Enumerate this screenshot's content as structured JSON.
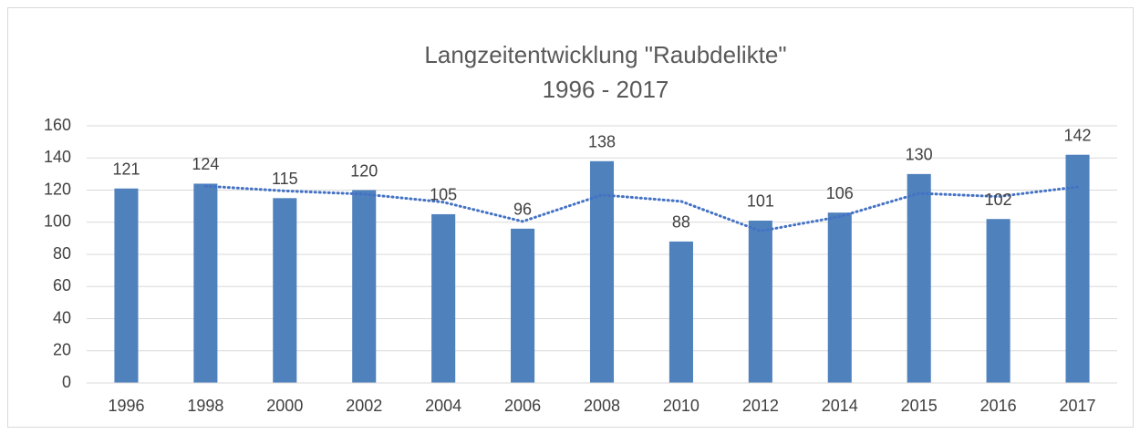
{
  "chart_data": {
    "type": "bar",
    "title": "Langzeitentwicklung \"Raubdelikte\"",
    "subtitle": "1996 - 2017",
    "categories": [
      "1996",
      "1998",
      "2000",
      "2002",
      "2004",
      "2006",
      "2008",
      "2010",
      "2012",
      "2014",
      "2015",
      "2016",
      "2017"
    ],
    "values": [
      121,
      124,
      115,
      120,
      105,
      96,
      138,
      88,
      101,
      106,
      130,
      102,
      142
    ],
    "color": "#4f81bd",
    "trendline": {
      "values": [
        null,
        122.5,
        119.5,
        117.5,
        112.5,
        100.5,
        117,
        113,
        94.5,
        103.5,
        118,
        116,
        122
      ],
      "color": "#4472c4",
      "style": "dotted"
    },
    "ylim": [
      0,
      160
    ],
    "yticks": [
      0,
      20,
      40,
      60,
      80,
      100,
      120,
      140,
      160
    ],
    "grid": true
  }
}
